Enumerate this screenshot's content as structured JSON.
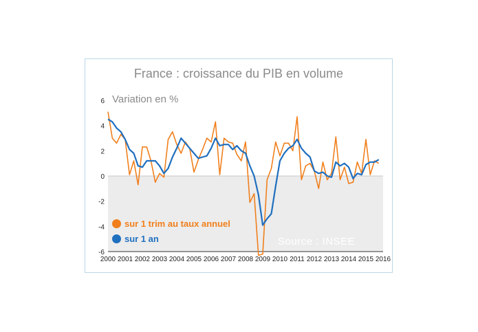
{
  "chart_data": {
    "type": "line",
    "title": "France : croissance du PIB en volume",
    "ylabel": "Variation en %",
    "xlabel": "",
    "ylim": [
      -6,
      6
    ],
    "yticks": [
      "6",
      "4",
      "2",
      "0",
      "-2",
      "-4",
      "-6"
    ],
    "xlim": [
      2000,
      2016
    ],
    "xticks": [
      "2000",
      "2001",
      "2002",
      "2003",
      "2004",
      "2005",
      "2006",
      "2007",
      "2008",
      "2009",
      "2010",
      "2011",
      "2012",
      "2013",
      "2014",
      "2015",
      "2016"
    ],
    "grid": false,
    "legend_position": "bottom-left",
    "source": "Source : INSEE",
    "series": [
      {
        "name": "sur 1 trim au taux annuel",
        "color": "#f07f1c",
        "x": [
          2000,
          2000.25,
          2000.5,
          2000.75,
          2001,
          2001.25,
          2001.5,
          2001.75,
          2002,
          2002.25,
          2002.5,
          2002.75,
          2003,
          2003.25,
          2003.5,
          2003.75,
          2004,
          2004.25,
          2004.5,
          2004.75,
          2005,
          2005.25,
          2005.5,
          2005.75,
          2006,
          2006.25,
          2006.5,
          2006.75,
          2007,
          2007.25,
          2007.5,
          2007.75,
          2008,
          2008.25,
          2008.5,
          2008.75,
          2009,
          2009.25,
          2009.5,
          2009.75,
          2010,
          2010.25,
          2010.5,
          2010.75,
          2011,
          2011.25,
          2011.5,
          2011.75,
          2012,
          2012.25,
          2012.5,
          2012.75,
          2013,
          2013.25,
          2013.5,
          2013.75,
          2014,
          2014.25,
          2014.5,
          2014.75,
          2015,
          2015.25,
          2015.5,
          2015.75
        ],
        "values": [
          5.1,
          3.0,
          2.6,
          3.3,
          2.9,
          0.1,
          1.2,
          -0.7,
          2.3,
          2.3,
          1.2,
          -0.5,
          0.2,
          -0.1,
          2.9,
          3.5,
          2.5,
          1.8,
          2.7,
          2.2,
          0.3,
          1.3,
          2.1,
          3.0,
          2.7,
          4.3,
          0.1,
          3.0,
          2.7,
          2.6,
          1.7,
          1.2,
          2.7,
          -2.1,
          -1.4,
          -6.3,
          -6.2,
          -0.3,
          0.6,
          2.7,
          1.6,
          2.6,
          2.6,
          2.0,
          4.7,
          -0.3,
          0.8,
          1.0,
          0.4,
          -1.0,
          1.1,
          -0.3,
          0.2,
          3.1,
          -0.3,
          0.7,
          -0.6,
          -0.5,
          1.1,
          0.2,
          2.9,
          0.1,
          1.2,
          1.0
        ]
      },
      {
        "name": "sur 1 an",
        "color": "#1f6fbf",
        "x": [
          2000,
          2000.25,
          2000.5,
          2000.75,
          2001,
          2001.25,
          2001.5,
          2001.75,
          2002,
          2002.25,
          2002.5,
          2002.75,
          2003,
          2003.25,
          2003.5,
          2003.75,
          2004,
          2004.25,
          2004.5,
          2004.75,
          2005,
          2005.25,
          2005.5,
          2005.75,
          2006,
          2006.25,
          2006.5,
          2006.75,
          2007,
          2007.25,
          2007.5,
          2007.75,
          2008,
          2008.25,
          2008.5,
          2008.75,
          2009,
          2009.25,
          2009.5,
          2009.75,
          2010,
          2010.25,
          2010.5,
          2010.75,
          2011,
          2011.25,
          2011.5,
          2011.75,
          2012,
          2012.25,
          2012.5,
          2012.75,
          2013,
          2013.25,
          2013.5,
          2013.75,
          2014,
          2014.25,
          2014.5,
          2014.75,
          2015,
          2015.25,
          2015.5,
          2015.75
        ],
        "values": [
          4.5,
          4.3,
          3.8,
          3.5,
          2.9,
          2.1,
          1.8,
          0.8,
          0.7,
          1.2,
          1.2,
          1.2,
          0.8,
          0.2,
          0.6,
          1.5,
          2.2,
          3.0,
          2.6,
          2.2,
          1.8,
          1.4,
          1.5,
          1.6,
          2.2,
          3.0,
          2.4,
          2.5,
          2.5,
          2.1,
          2.4,
          2.0,
          1.8,
          0.8,
          0.0,
          -1.5,
          -3.9,
          -3.4,
          -3.0,
          -0.8,
          1.2,
          1.8,
          2.2,
          2.4,
          2.9,
          2.2,
          1.8,
          1.5,
          0.4,
          0.2,
          0.3,
          0.0,
          -0.1,
          1.1,
          0.8,
          1.0,
          0.7,
          -0.2,
          0.2,
          0.1,
          0.9,
          1.1,
          1.1,
          1.3
        ]
      }
    ]
  }
}
